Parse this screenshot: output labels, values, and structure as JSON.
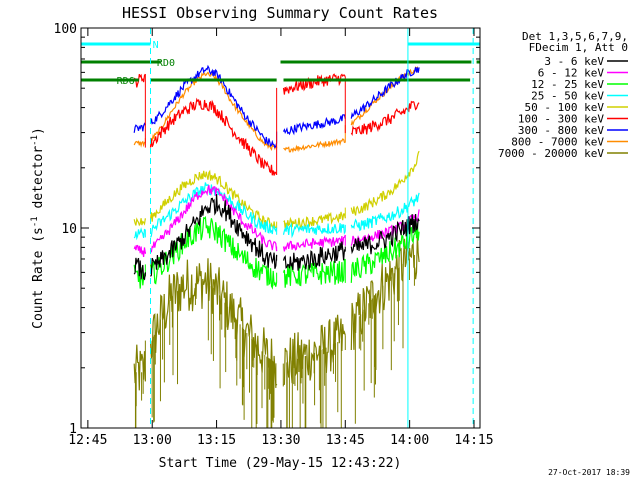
{
  "chart_data": {
    "type": "line",
    "title": "HESSI Observing Summary Count Rates",
    "xlabel": "Start Time (29-May-15 12:43:22)",
    "ylabel_main": "Count Rate (s",
    "ylabel_sup1": "-1",
    "ylabel_mid": " detector",
    "ylabel_sup2": "-1",
    "ylabel_end": ")",
    "yscale": "log",
    "ylim": [
      1,
      100
    ],
    "xlim_minutes": [
      0,
      93
    ],
    "x_ticks": [
      {
        "label": "12:45",
        "t": 1.6
      },
      {
        "label": "13:00",
        "t": 16.6
      },
      {
        "label": "13:15",
        "t": 31.6
      },
      {
        "label": "13:30",
        "t": 46.6
      },
      {
        "label": "13:45",
        "t": 61.6
      },
      {
        "label": "14:00",
        "t": 76.6
      },
      {
        "label": "14:15",
        "t": 91.6
      }
    ],
    "y_ticks": [
      {
        "label": "1",
        "v": 1
      },
      {
        "label": "10",
        "v": 10
      },
      {
        "label": "100",
        "v": 100
      }
    ],
    "legend_header": [
      "Det 1,3,5,6,7,9,",
      "FDecim 1, Att 0"
    ],
    "series": [
      {
        "name": "3 - 6 keV",
        "color": "#000000",
        "points": [
          [
            12.4,
            6.6
          ],
          [
            13.2,
            6.4
          ],
          [
            14.5,
            5.9
          ],
          [
            16.2,
            6.2
          ],
          [
            18.0,
            6.6
          ],
          [
            21.0,
            7.6
          ],
          [
            24.0,
            9.0
          ],
          [
            27.0,
            10.8
          ],
          [
            29.0,
            12.5
          ],
          [
            31.0,
            13.3
          ],
          [
            33.0,
            12.8
          ],
          [
            35.0,
            11.3
          ],
          [
            38.0,
            9.4
          ],
          [
            41.0,
            8.0
          ],
          [
            43.0,
            7.1
          ],
          [
            45.5,
            6.6
          ],
          [
            46.3,
            6.6
          ],
          [
            47.2,
            6.5
          ],
          [
            50.0,
            6.7
          ],
          [
            54.0,
            7.0
          ],
          [
            57.0,
            7.3
          ],
          [
            60.0,
            7.6
          ],
          [
            61.7,
            7.8
          ],
          [
            63.0,
            7.8
          ],
          [
            66.0,
            8.1
          ],
          [
            69.0,
            8.5
          ],
          [
            72.0,
            9.0
          ],
          [
            74.0,
            9.6
          ],
          [
            76.0,
            10.2
          ],
          [
            78.0,
            10.8
          ],
          [
            79.0,
            11.2
          ]
        ]
      },
      {
        "name": "6 - 12 keV",
        "color": "#ff00ff",
        "points": [
          [
            12.4,
            7.8
          ],
          [
            14.5,
            7.6
          ],
          [
            16.2,
            7.8
          ],
          [
            18.0,
            8.4
          ],
          [
            21.0,
            10.0
          ],
          [
            24.0,
            12.0
          ],
          [
            27.0,
            14.5
          ],
          [
            29.0,
            15.6
          ],
          [
            31.0,
            15.4
          ],
          [
            33.0,
            14.4
          ],
          [
            35.0,
            12.6
          ],
          [
            38.0,
            10.6
          ],
          [
            41.0,
            9.3
          ],
          [
            43.0,
            8.4
          ],
          [
            45.5,
            8.0
          ],
          [
            47.2,
            8.0
          ],
          [
            50.0,
            8.2
          ],
          [
            55.0,
            8.4
          ],
          [
            60.0,
            8.6
          ],
          [
            61.7,
            8.7
          ],
          [
            63.0,
            8.6
          ],
          [
            66.0,
            8.9
          ],
          [
            69.0,
            9.2
          ],
          [
            72.0,
            9.6
          ],
          [
            74.0,
            10.0
          ],
          [
            76.0,
            10.6
          ],
          [
            78.0,
            11.3
          ],
          [
            79.0,
            11.8
          ]
        ]
      },
      {
        "name": "12 - 25 keV",
        "color": "#00ff00",
        "points": [
          [
            12.4,
            5.7
          ],
          [
            14.5,
            5.6
          ],
          [
            16.2,
            5.8
          ],
          [
            18.0,
            6.2
          ],
          [
            21.0,
            7.2
          ],
          [
            24.0,
            8.5
          ],
          [
            27.0,
            9.6
          ],
          [
            29.0,
            10.0
          ],
          [
            31.0,
            9.8
          ],
          [
            33.0,
            9.0
          ],
          [
            35.0,
            8.0
          ],
          [
            38.0,
            7.0
          ],
          [
            41.0,
            6.3
          ],
          [
            43.0,
            5.9
          ],
          [
            45.5,
            5.7
          ],
          [
            47.2,
            5.7
          ],
          [
            50.0,
            5.8
          ],
          [
            55.0,
            5.9
          ],
          [
            60.0,
            6.0
          ],
          [
            61.7,
            6.1
          ],
          [
            63.0,
            6.1
          ],
          [
            66.0,
            6.4
          ],
          [
            69.0,
            6.9
          ],
          [
            72.0,
            7.5
          ],
          [
            74.0,
            8.0
          ],
          [
            76.0,
            8.6
          ],
          [
            78.0,
            9.4
          ],
          [
            79.0,
            10.0
          ]
        ]
      },
      {
        "name": "25 - 50 keV",
        "color": "#00ffff",
        "points": [
          [
            12.4,
            9.3
          ],
          [
            14.5,
            9.2
          ],
          [
            16.2,
            9.6
          ],
          [
            18.0,
            10.4
          ],
          [
            21.0,
            11.8
          ],
          [
            24.0,
            13.5
          ],
          [
            27.0,
            15.0
          ],
          [
            29.0,
            15.8
          ],
          [
            31.0,
            15.6
          ],
          [
            33.0,
            14.8
          ],
          [
            35.0,
            13.5
          ],
          [
            38.0,
            12.0
          ],
          [
            41.0,
            10.7
          ],
          [
            43.0,
            10.1
          ],
          [
            45.5,
            9.9
          ],
          [
            47.2,
            9.7
          ],
          [
            50.0,
            9.8
          ],
          [
            55.0,
            9.9
          ],
          [
            60.0,
            10.0
          ],
          [
            61.7,
            10.1
          ],
          [
            63.0,
            10.2
          ],
          [
            66.0,
            10.4
          ],
          [
            69.0,
            10.9
          ],
          [
            72.0,
            11.5
          ],
          [
            74.0,
            12.0
          ],
          [
            76.0,
            12.8
          ],
          [
            78.0,
            13.8
          ],
          [
            79.0,
            14.6
          ]
        ]
      },
      {
        "name": "50 - 100 keV",
        "color": "#d0d000",
        "points": [
          [
            12.4,
            10.8
          ],
          [
            14.5,
            10.6
          ],
          [
            16.2,
            11.2
          ],
          [
            18.0,
            12.2
          ],
          [
            21.0,
            14.2
          ],
          [
            24.0,
            16.3
          ],
          [
            27.0,
            18.0
          ],
          [
            29.0,
            18.6
          ],
          [
            31.0,
            18.0
          ],
          [
            33.0,
            16.8
          ],
          [
            35.0,
            15.0
          ],
          [
            38.0,
            13.0
          ],
          [
            41.0,
            11.5
          ],
          [
            43.0,
            10.7
          ],
          [
            45.5,
            10.4
          ],
          [
            47.2,
            10.4
          ],
          [
            50.0,
            10.6
          ],
          [
            55.0,
            10.9
          ],
          [
            60.0,
            11.3
          ],
          [
            61.7,
            11.5
          ],
          [
            63.0,
            12.0
          ],
          [
            66.0,
            12.7
          ],
          [
            69.0,
            13.8
          ],
          [
            72.0,
            15.2
          ],
          [
            74.0,
            16.5
          ],
          [
            76.0,
            18.5
          ],
          [
            78.0,
            21.0
          ],
          [
            79.0,
            23.5
          ]
        ]
      },
      {
        "name": "100 - 300 keV",
        "color": "#ff0000",
        "points": [
          [
            12.4,
            53
          ],
          [
            13.5,
            55
          ],
          [
            14.5,
            57
          ],
          [
            15.0,
            58
          ],
          [
            16.2,
            26
          ],
          [
            18.0,
            29
          ],
          [
            21.0,
            34
          ],
          [
            24.0,
            38.5
          ],
          [
            27.0,
            41.5
          ],
          [
            29.0,
            42
          ],
          [
            31.0,
            40
          ],
          [
            33.0,
            36
          ],
          [
            35.0,
            31.5
          ],
          [
            38.0,
            26.5
          ],
          [
            41.0,
            22.5
          ],
          [
            43.0,
            20.0
          ],
          [
            45.5,
            19.0
          ],
          [
            46.3,
            19.0
          ],
          [
            47.2,
            49
          ],
          [
            50.0,
            51
          ],
          [
            55.0,
            54
          ],
          [
            60.0,
            56
          ],
          [
            61.7,
            57
          ],
          [
            63.0,
            30
          ],
          [
            66.0,
            31
          ],
          [
            69.0,
            33
          ],
          [
            72.0,
            35
          ],
          [
            74.0,
            37
          ],
          [
            76.0,
            39
          ],
          [
            78.0,
            42
          ],
          [
            79.0,
            44
          ]
        ]
      },
      {
        "name": "300 - 800 keV",
        "color": "#0000ff",
        "points": [
          [
            12.4,
            31
          ],
          [
            14.5,
            32
          ],
          [
            16.2,
            33.5
          ],
          [
            18.0,
            36
          ],
          [
            21.0,
            43
          ],
          [
            24.0,
            51
          ],
          [
            27.0,
            58
          ],
          [
            29.0,
            62
          ],
          [
            31.0,
            60
          ],
          [
            33.0,
            54
          ],
          [
            35.0,
            46
          ],
          [
            38.0,
            37
          ],
          [
            41.0,
            31
          ],
          [
            43.0,
            27.5
          ],
          [
            45.5,
            25.5
          ],
          [
            47.2,
            30
          ],
          [
            50.0,
            31.5
          ],
          [
            55.0,
            33
          ],
          [
            60.0,
            34.5
          ],
          [
            61.7,
            35.5
          ],
          [
            63.0,
            36
          ],
          [
            66.0,
            40
          ],
          [
            69.0,
            45
          ],
          [
            72.0,
            51
          ],
          [
            74.0,
            55
          ],
          [
            76.0,
            59
          ],
          [
            78.0,
            62
          ],
          [
            79.0,
            63
          ]
        ]
      },
      {
        "name": "800 - 7000 keV",
        "color": "#ff8c00",
        "points": [
          [
            12.4,
            26.5
          ],
          [
            14.5,
            26.5
          ],
          [
            16.2,
            27.5
          ],
          [
            18.0,
            30
          ],
          [
            21.0,
            38
          ],
          [
            24.0,
            47
          ],
          [
            27.0,
            55
          ],
          [
            29.0,
            59
          ],
          [
            31.0,
            57
          ],
          [
            33.0,
            51
          ],
          [
            35.0,
            43
          ],
          [
            38.0,
            35
          ],
          [
            41.0,
            29
          ],
          [
            43.0,
            26
          ],
          [
            45.5,
            25
          ],
          [
            47.2,
            24.5
          ],
          [
            50.0,
            25
          ],
          [
            55.0,
            26
          ],
          [
            60.0,
            27
          ],
          [
            61.7,
            27.5
          ],
          [
            63.0,
            33
          ],
          [
            66.0,
            38
          ],
          [
            69.0,
            44
          ],
          [
            72.0,
            50
          ],
          [
            74.0,
            55
          ],
          [
            76.0,
            59
          ],
          [
            78.0,
            62
          ],
          [
            79.0,
            62
          ]
        ]
      },
      {
        "name": "7000 - 20000 keV",
        "color": "#808000",
        "points": [
          [
            12.4,
            1.9
          ],
          [
            14.5,
            1.9
          ],
          [
            16.2,
            2.6
          ],
          [
            18.0,
            3.3
          ],
          [
            21.0,
            4.5
          ],
          [
            24.0,
            5.2
          ],
          [
            27.0,
            5.3
          ],
          [
            29.0,
            5.4
          ],
          [
            31.0,
            5.0
          ],
          [
            33.0,
            4.4
          ],
          [
            35.0,
            3.8
          ],
          [
            38.0,
            3.1
          ],
          [
            41.0,
            2.6
          ],
          [
            43.0,
            2.3
          ],
          [
            45.5,
            2.1
          ],
          [
            47.2,
            2.1
          ],
          [
            50.0,
            2.2
          ],
          [
            55.0,
            2.4
          ],
          [
            60.0,
            2.7
          ],
          [
            61.7,
            2.8
          ],
          [
            63.0,
            3.2
          ],
          [
            66.0,
            3.9
          ],
          [
            69.0,
            4.8
          ],
          [
            72.0,
            5.6
          ],
          [
            74.0,
            6.3
          ],
          [
            76.0,
            6.9
          ],
          [
            78.0,
            7.4
          ],
          [
            79.0,
            7.6
          ]
        ]
      }
    ],
    "flag_bars": [
      {
        "label": "N",
        "color": "#00ffff",
        "level": 0.96,
        "segments": [
          [
            -2.0,
            16.2
          ],
          [
            76.2,
            93.0
          ]
        ]
      },
      {
        "label": "RD0",
        "color": "#008000",
        "level": 0.915,
        "segments": [
          [
            -2.0,
            18.6
          ],
          [
            46.5,
            91.0
          ],
          [
            92.2,
            93.0
          ]
        ]
      },
      {
        "label": "RD6",
        "color": "#008000",
        "level": 0.87,
        "segments": [
          [
            -2.0,
            13.5
          ],
          [
            16.2,
            45.6
          ],
          [
            47.2,
            90.7
          ]
        ]
      }
    ],
    "flag_label_t": {
      "N": 17.4,
      "RD0": 19.8,
      "RD6": 10.4
    },
    "vlines": [
      {
        "t": -2.0,
        "color": "#00ffff",
        "style": "solid"
      },
      {
        "t": 16.2,
        "color": "#00ffff",
        "style": "dashed"
      },
      {
        "t": 76.2,
        "color": "#00ffff",
        "style": "solid"
      },
      {
        "t": 91.4,
        "color": "#00ffff",
        "style": "dashed"
      }
    ],
    "gaps": [
      [
        15.1,
        16.1
      ],
      [
        45.7,
        47.1
      ],
      [
        61.8,
        62.9
      ]
    ],
    "legend_position": "right"
  },
  "footer_date": "27-Oct-2017 18:39"
}
